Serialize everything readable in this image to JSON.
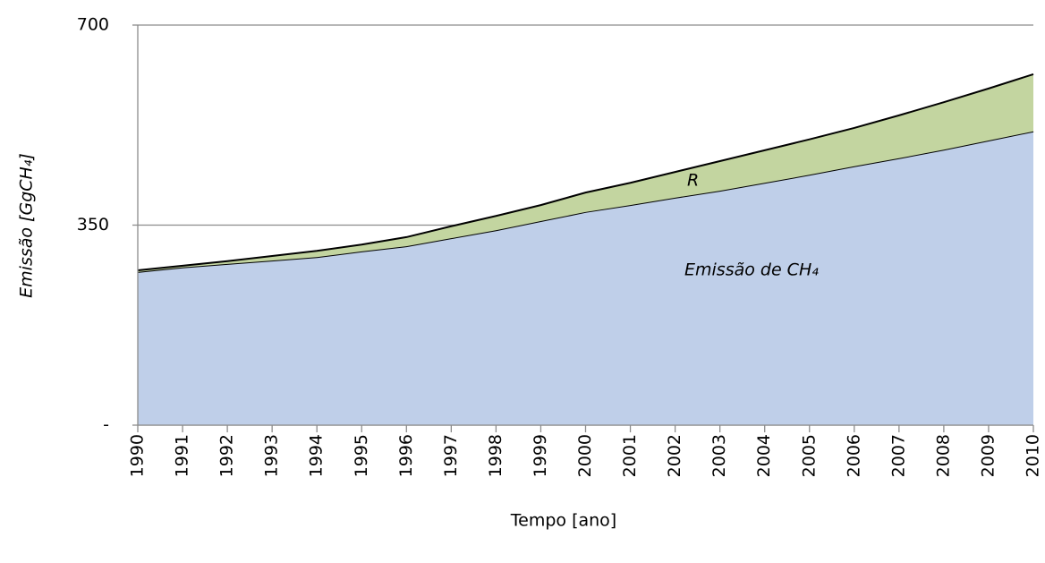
{
  "chart_data": {
    "type": "stacked-area",
    "x_label": "Tempo [ano]",
    "y_label": "Emissão [GgCH₄]",
    "categories": [
      "1990",
      "1991",
      "1992",
      "1993",
      "1994",
      "1995",
      "1996",
      "1997",
      "1998",
      "1999",
      "2000",
      "2001",
      "2002",
      "2003",
      "2004",
      "2005",
      "2006",
      "2007",
      "2008",
      "2009",
      "2010"
    ],
    "series": [
      {
        "name": "Emissão de CH₄",
        "color": "#bfcfe9",
        "values": [
          268,
          276,
          282,
          288,
          294,
          304,
          313,
          327,
          341,
          357,
          373,
          385,
          398,
          410,
          424,
          438,
          453,
          467,
          482,
          498,
          514
        ]
      },
      {
        "name": "R",
        "color": "#c3d5a0",
        "values": [
          3,
          3,
          5,
          8,
          11,
          12,
          16,
          21,
          25,
          28,
          34,
          39,
          45,
          52,
          57,
          62,
          67,
          75,
          83,
          91,
          100
        ]
      }
    ],
    "ylim": [
      0,
      700
    ],
    "yticks": [
      {
        "value": 0,
        "label": "-"
      },
      350,
      700
    ],
    "grid": true
  }
}
